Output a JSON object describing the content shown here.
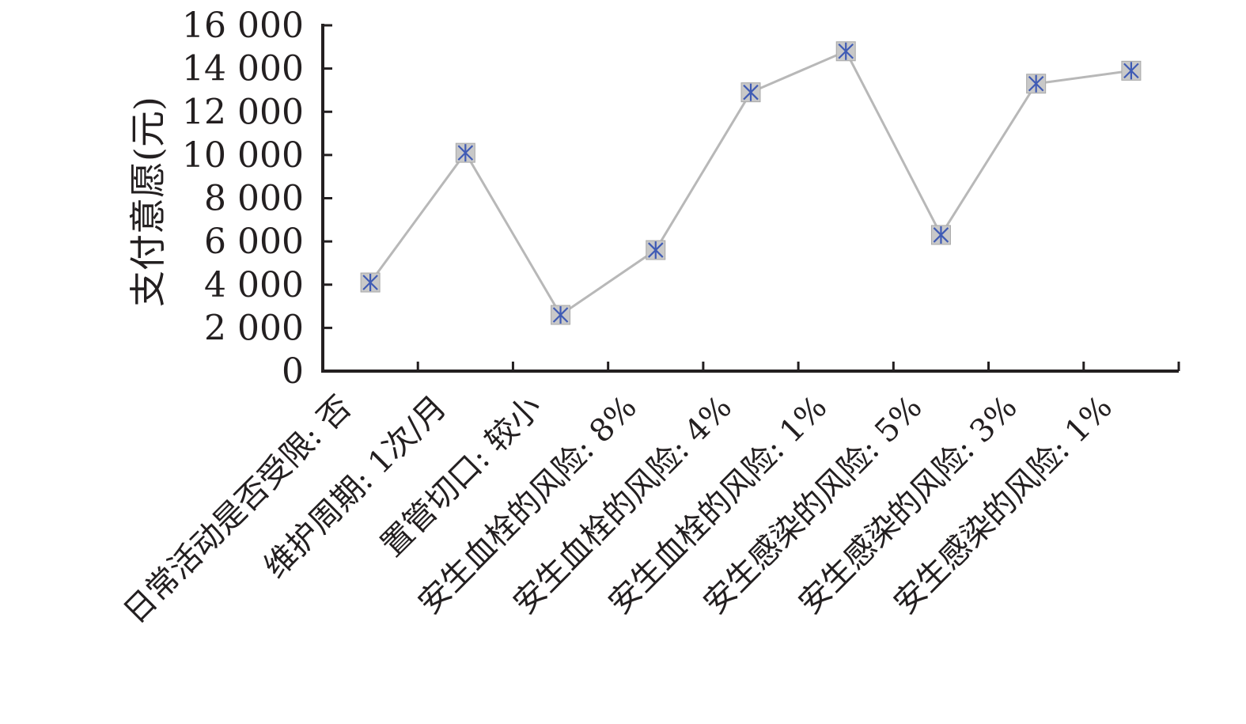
{
  "chart_data": {
    "type": "line",
    "ylabel": "支付意愿(元)",
    "xlabel": "",
    "ylim": [
      0,
      16000
    ],
    "yticks": [
      0,
      2000,
      4000,
      6000,
      8000,
      10000,
      12000,
      14000,
      16000
    ],
    "ytick_labels": [
      "0",
      "2 000",
      "4 000",
      "6 000",
      "8 000",
      "10 000",
      "12 000",
      "14 000",
      "16 000"
    ],
    "categories": [
      "日常活动是否受限: 否",
      "维护周期: 1次/月",
      "置管切口: 较小",
      "安生血栓的风险: 8%",
      "安生血栓的风险: 4%",
      "安生血栓的风险: 1%",
      "安生感染的风险: 5%",
      "安生感染的风险: 3%",
      "安生感染的风险: 1%"
    ],
    "values": [
      4100,
      10100,
      2600,
      5600,
      12900,
      14800,
      6300,
      13300,
      13900
    ],
    "grid": false,
    "line_color": "#b8b8b8",
    "marker_fill": "#c8c8c8",
    "marker_star_color": "#3f5bb5",
    "axis_color": "#231f20"
  }
}
